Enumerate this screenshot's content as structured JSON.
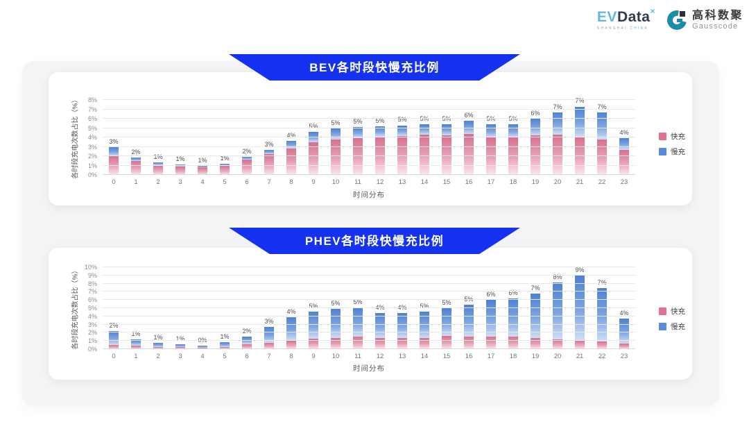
{
  "logo": {
    "evdata": {
      "ev": "EV",
      "data": "Data",
      "sup": "×",
      "sub_shanghai": "SHANGHAI",
      "sub_china": "CHINA"
    },
    "gausscode": {
      "cn": "高科数聚",
      "en": "Gausscode"
    }
  },
  "colors": {
    "banner_blue": "#1532f0",
    "fast_pink": "#e0718f",
    "slow_blue": "#5d89d9",
    "panel_gray": "#f4f4f6"
  },
  "chart_data": [
    {
      "type": "bar",
      "stacked": true,
      "title": "BEV各时段快慢充比例",
      "ylabel": "各时段充电次数占比（%）",
      "xlabel": "时间分布",
      "ymax": 8,
      "ytick_step": 1,
      "grid": true,
      "legend_position": "right",
      "categories": [
        "0",
        "1",
        "2",
        "3",
        "4",
        "5",
        "6",
        "7",
        "8",
        "9",
        "10",
        "11",
        "12",
        "13",
        "14",
        "15",
        "16",
        "17",
        "18",
        "19",
        "20",
        "21",
        "22",
        "23"
      ],
      "labels": [
        "3%",
        "2%",
        "1%",
        "1%",
        "1%",
        "1%",
        "2%",
        "3%",
        "4%",
        "5%",
        "5%",
        "5%",
        "5%",
        "5%",
        "5%",
        "5%",
        "6%",
        "5%",
        "5%",
        "6%",
        "7%",
        "7%",
        "7%",
        "4%"
      ],
      "series": [
        {
          "name": "快充",
          "color": "#e0718f",
          "values": [
            2.0,
            1.45,
            1.05,
            0.9,
            0.85,
            1.0,
            1.6,
            2.2,
            2.85,
            3.5,
            3.8,
            3.9,
            4.1,
            4.15,
            4.3,
            4.25,
            4.4,
            4.0,
            4.0,
            4.2,
            4.3,
            4.1,
            3.8,
            2.7
          ]
        },
        {
          "name": "慢充",
          "color": "#5d89d9",
          "values": [
            0.95,
            0.4,
            0.25,
            0.2,
            0.1,
            0.2,
            0.3,
            0.5,
            0.8,
            1.1,
            1.2,
            1.2,
            1.1,
            1.15,
            1.1,
            1.15,
            1.4,
            1.4,
            1.4,
            1.8,
            2.4,
            3.2,
            2.9,
            1.2
          ]
        }
      ]
    },
    {
      "type": "bar",
      "stacked": true,
      "title": "PHEV各时段快慢充比例",
      "ylabel": "各时段充电次数占比（%）",
      "xlabel": "时间分布",
      "ymax": 10,
      "ytick_step": 1,
      "grid": true,
      "legend_position": "right",
      "categories": [
        "0",
        "1",
        "2",
        "3",
        "4",
        "5",
        "6",
        "7",
        "8",
        "9",
        "10",
        "11",
        "12",
        "13",
        "14",
        "15",
        "16",
        "17",
        "18",
        "19",
        "20",
        "21",
        "22",
        "23"
      ],
      "labels": [
        "2%",
        "1%",
        "1%",
        "1%",
        "0%",
        "1%",
        "2%",
        "3%",
        "4%",
        "5%",
        "5%",
        "5%",
        "4%",
        "4%",
        "5%",
        "5%",
        "5%",
        "6%",
        "6%",
        "7%",
        "8%",
        "9%",
        "7%",
        "4%"
      ],
      "series": [
        {
          "name": "快充",
          "color": "#e0718f",
          "values": [
            0.5,
            0.4,
            0.3,
            0.25,
            0.2,
            0.3,
            0.6,
            0.8,
            1.0,
            1.3,
            1.4,
            1.5,
            1.4,
            1.4,
            1.4,
            1.6,
            1.5,
            1.5,
            1.5,
            1.4,
            1.2,
            1.1,
            0.9,
            0.7
          ]
        },
        {
          "name": "慢充",
          "color": "#5d89d9",
          "values": [
            1.7,
            0.8,
            0.5,
            0.35,
            0.25,
            0.55,
            0.9,
            1.95,
            2.9,
            3.3,
            3.5,
            3.6,
            3.0,
            3.05,
            3.2,
            3.4,
            3.9,
            4.5,
            4.7,
            5.4,
            6.9,
            7.9,
            6.6,
            3.0
          ]
        }
      ]
    }
  ]
}
